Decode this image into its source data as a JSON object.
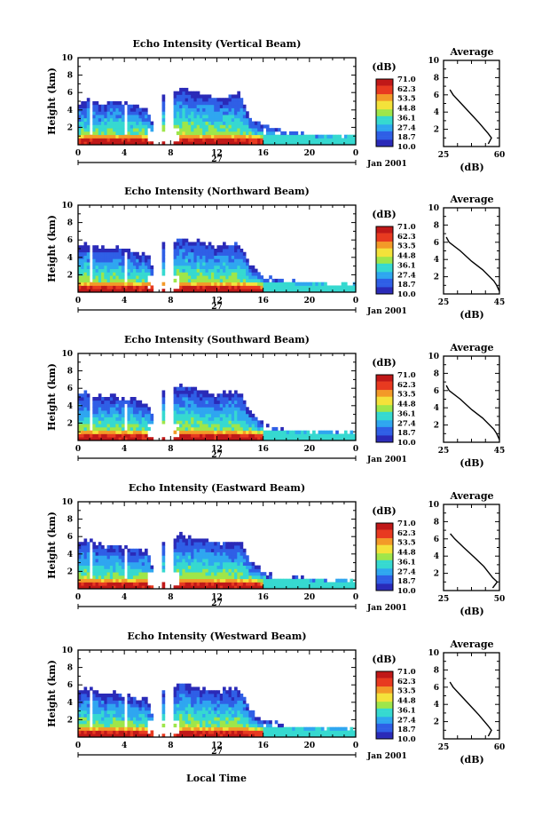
{
  "figure": {
    "time_axis_label": "Local Time",
    "date_mark": "27",
    "date_label": "Jan 2001",
    "colorbar_unit": "(dB)",
    "colorbar_levels": [
      "10.0",
      "18.7",
      "27.4",
      "36.1",
      "44.8",
      "53.5",
      "62.3",
      "71.0"
    ],
    "colorbar_colors": [
      "#2a2ab8",
      "#2f5fe6",
      "#2fa6f0",
      "#36d9d0",
      "#9ee64a",
      "#f4e23a",
      "#f39a28",
      "#e83a20",
      "#c01818"
    ],
    "profile_title": "Average",
    "profile_xlabel": "(dB)"
  },
  "chart_data": [
    {
      "type": "heatmap",
      "title": "Echo Intensity (Vertical Beam)",
      "xlabel": "",
      "ylabel": "Height (km)",
      "xlim": [
        0,
        24
      ],
      "ylim": [
        0,
        10
      ],
      "xticks": [
        "0",
        "4",
        "8",
        "12",
        "16",
        "20",
        "0"
      ],
      "yticks": [
        "2",
        "4",
        "6",
        "8",
        "10"
      ],
      "echo_top_km": [
        [
          0,
          4.7
        ],
        [
          1,
          5.3
        ],
        [
          2,
          4.6
        ],
        [
          3,
          5.0
        ],
        [
          4,
          4.8
        ],
        [
          5,
          4.5
        ],
        [
          6,
          4.2
        ],
        [
          6.5,
          2.5
        ],
        [
          7.3,
          6.5
        ],
        [
          7.8,
          1.0
        ],
        [
          8.2,
          6.0
        ],
        [
          9,
          6.4
        ],
        [
          10,
          6.0
        ],
        [
          11,
          5.8
        ],
        [
          12,
          5.5
        ],
        [
          13,
          5.7
        ],
        [
          14,
          5.8
        ],
        [
          15,
          3.0
        ],
        [
          16,
          2.5
        ],
        [
          18,
          1.7
        ],
        [
          20,
          1.3
        ],
        [
          22,
          1.1
        ],
        [
          24,
          1.1
        ]
      ],
      "profile": {
        "xlim": [
          25,
          60
        ],
        "xticks": [
          "25",
          "60"
        ],
        "yticks": [
          "2",
          "4",
          "6",
          "8",
          "10"
        ],
        "points": [
          [
            53,
            0.3
          ],
          [
            55,
            1.0
          ],
          [
            53,
            1.5
          ],
          [
            47,
            2.8
          ],
          [
            42,
            3.8
          ],
          [
            36,
            5.0
          ],
          [
            31,
            6.0
          ],
          [
            29,
            6.6
          ]
        ]
      }
    },
    {
      "type": "heatmap",
      "title": "Echo Intensity (Northward Beam)",
      "xlabel": "",
      "ylabel": "Height (km)",
      "xlim": [
        0,
        24
      ],
      "ylim": [
        0,
        10
      ],
      "xticks": [
        "0",
        "4",
        "8",
        "12",
        "16",
        "20",
        "0"
      ],
      "yticks": [
        "2",
        "4",
        "6",
        "8",
        "10"
      ],
      "echo_top_km": [
        [
          0,
          5.4
        ],
        [
          1,
          5.6
        ],
        [
          2,
          5.0
        ],
        [
          3,
          5.2
        ],
        [
          4,
          4.9
        ],
        [
          5,
          4.7
        ],
        [
          6,
          4.4
        ],
        [
          6.5,
          2.5
        ],
        [
          7.3,
          6.4
        ],
        [
          7.8,
          1.0
        ],
        [
          8.2,
          6.0
        ],
        [
          9,
          6.2
        ],
        [
          10,
          5.9
        ],
        [
          11,
          5.6
        ],
        [
          12,
          5.3
        ],
        [
          13,
          5.5
        ],
        [
          14,
          5.5
        ],
        [
          15,
          3.0
        ],
        [
          16,
          2.0
        ],
        [
          18,
          1.4
        ],
        [
          20,
          1.2
        ],
        [
          22,
          1.0
        ],
        [
          24,
          1.0
        ]
      ],
      "profile": {
        "xlim": [
          25,
          45
        ],
        "xticks": [
          "25",
          "45"
        ],
        "yticks": [
          "2",
          "4",
          "6",
          "8",
          "10"
        ],
        "points": [
          [
            45,
            0.3
          ],
          [
            44,
            1.0
          ],
          [
            43,
            1.5
          ],
          [
            39,
            2.8
          ],
          [
            35,
            3.8
          ],
          [
            31,
            5.0
          ],
          [
            27,
            6.0
          ],
          [
            26,
            6.6
          ]
        ]
      }
    },
    {
      "type": "heatmap",
      "title": "Echo Intensity (Southward Beam)",
      "xlabel": "",
      "ylabel": "Height (km)",
      "xlim": [
        0,
        24
      ],
      "ylim": [
        0,
        10
      ],
      "xticks": [
        "0",
        "4",
        "8",
        "12",
        "16",
        "20",
        "0"
      ],
      "yticks": [
        "2",
        "4",
        "6",
        "8",
        "10"
      ],
      "echo_top_km": [
        [
          0,
          5.4
        ],
        [
          1,
          5.5
        ],
        [
          2,
          5.0
        ],
        [
          3,
          5.2
        ],
        [
          4,
          4.9
        ],
        [
          5,
          4.7
        ],
        [
          6,
          4.4
        ],
        [
          6.5,
          2.5
        ],
        [
          7.3,
          6.4
        ],
        [
          7.8,
          1.0
        ],
        [
          8.2,
          6.0
        ],
        [
          9,
          6.2
        ],
        [
          10,
          5.9
        ],
        [
          11,
          5.6
        ],
        [
          12,
          5.3
        ],
        [
          13,
          5.5
        ],
        [
          14,
          5.5
        ],
        [
          15,
          3.0
        ],
        [
          16,
          2.0
        ],
        [
          18,
          1.4
        ],
        [
          20,
          1.2
        ],
        [
          22,
          1.0
        ],
        [
          24,
          1.0
        ]
      ],
      "profile": {
        "xlim": [
          25,
          45
        ],
        "xticks": [
          "25",
          "45"
        ],
        "yticks": [
          "2",
          "4",
          "6",
          "8",
          "10"
        ],
        "points": [
          [
            45,
            0.3
          ],
          [
            44,
            1.0
          ],
          [
            43,
            1.5
          ],
          [
            39,
            2.8
          ],
          [
            35,
            3.8
          ],
          [
            31,
            5.0
          ],
          [
            27,
            6.0
          ],
          [
            26,
            6.6
          ]
        ]
      }
    },
    {
      "type": "heatmap",
      "title": "Echo Intensity (Eastward Beam)",
      "xlabel": "",
      "ylabel": "Height (km)",
      "xlim": [
        0,
        24
      ],
      "ylim": [
        0,
        10
      ],
      "xticks": [
        "0",
        "4",
        "8",
        "12",
        "16",
        "20",
        "0"
      ],
      "yticks": [
        "2",
        "4",
        "6",
        "8",
        "10"
      ],
      "echo_top_km": [
        [
          0,
          5.3
        ],
        [
          1,
          5.5
        ],
        [
          2,
          4.9
        ],
        [
          3,
          5.1
        ],
        [
          4,
          4.8
        ],
        [
          5,
          4.6
        ],
        [
          6,
          4.3
        ],
        [
          6.5,
          2.5
        ],
        [
          7.3,
          6.4
        ],
        [
          7.8,
          1.0
        ],
        [
          8.2,
          6.0
        ],
        [
          9,
          6.2
        ],
        [
          10,
          5.9
        ],
        [
          11,
          5.6
        ],
        [
          12,
          5.3
        ],
        [
          13,
          5.5
        ],
        [
          14,
          5.5
        ],
        [
          15,
          3.0
        ],
        [
          16,
          2.0
        ],
        [
          18,
          1.4
        ],
        [
          20,
          1.2
        ],
        [
          22,
          1.0
        ],
        [
          24,
          1.0
        ]
      ],
      "profile": {
        "xlim": [
          25,
          50
        ],
        "xticks": [
          "25",
          "50"
        ],
        "yticks": [
          "2",
          "4",
          "6",
          "8",
          "10"
        ],
        "points": [
          [
            47,
            0.3
          ],
          [
            49,
            1.0
          ],
          [
            47,
            1.5
          ],
          [
            43,
            2.8
          ],
          [
            39,
            3.8
          ],
          [
            34,
            5.0
          ],
          [
            30,
            6.0
          ],
          [
            28,
            6.6
          ]
        ]
      }
    },
    {
      "type": "heatmap",
      "title": "Echo Intensity (Westward Beam)",
      "xlabel": "",
      "ylabel": "Height (km)",
      "xlim": [
        0,
        24
      ],
      "ylim": [
        0,
        10
      ],
      "xticks": [
        "0",
        "4",
        "8",
        "12",
        "16",
        "20",
        "0"
      ],
      "yticks": [
        "2",
        "4",
        "6",
        "8",
        "10"
      ],
      "echo_top_km": [
        [
          0,
          5.3
        ],
        [
          1,
          5.5
        ],
        [
          2,
          4.9
        ],
        [
          3,
          5.1
        ],
        [
          4,
          4.8
        ],
        [
          5,
          4.6
        ],
        [
          6,
          4.3
        ],
        [
          6.5,
          2.5
        ],
        [
          7.3,
          6.4
        ],
        [
          7.8,
          1.0
        ],
        [
          8.2,
          6.0
        ],
        [
          9,
          6.2
        ],
        [
          10,
          5.9
        ],
        [
          11,
          5.6
        ],
        [
          12,
          5.3
        ],
        [
          13,
          5.5
        ],
        [
          14,
          5.5
        ],
        [
          15,
          3.0
        ],
        [
          16,
          2.0
        ],
        [
          18,
          1.4
        ],
        [
          20,
          1.2
        ],
        [
          22,
          1.0
        ],
        [
          24,
          1.0
        ]
      ],
      "profile": {
        "xlim": [
          25,
          60
        ],
        "xticks": [
          "25",
          "60"
        ],
        "yticks": [
          "2",
          "4",
          "6",
          "8",
          "10"
        ],
        "points": [
          [
            53,
            0.3
          ],
          [
            55,
            1.0
          ],
          [
            53,
            1.5
          ],
          [
            47,
            2.8
          ],
          [
            42,
            3.8
          ],
          [
            36,
            5.0
          ],
          [
            31,
            6.0
          ],
          [
            29,
            6.6
          ]
        ]
      }
    }
  ]
}
